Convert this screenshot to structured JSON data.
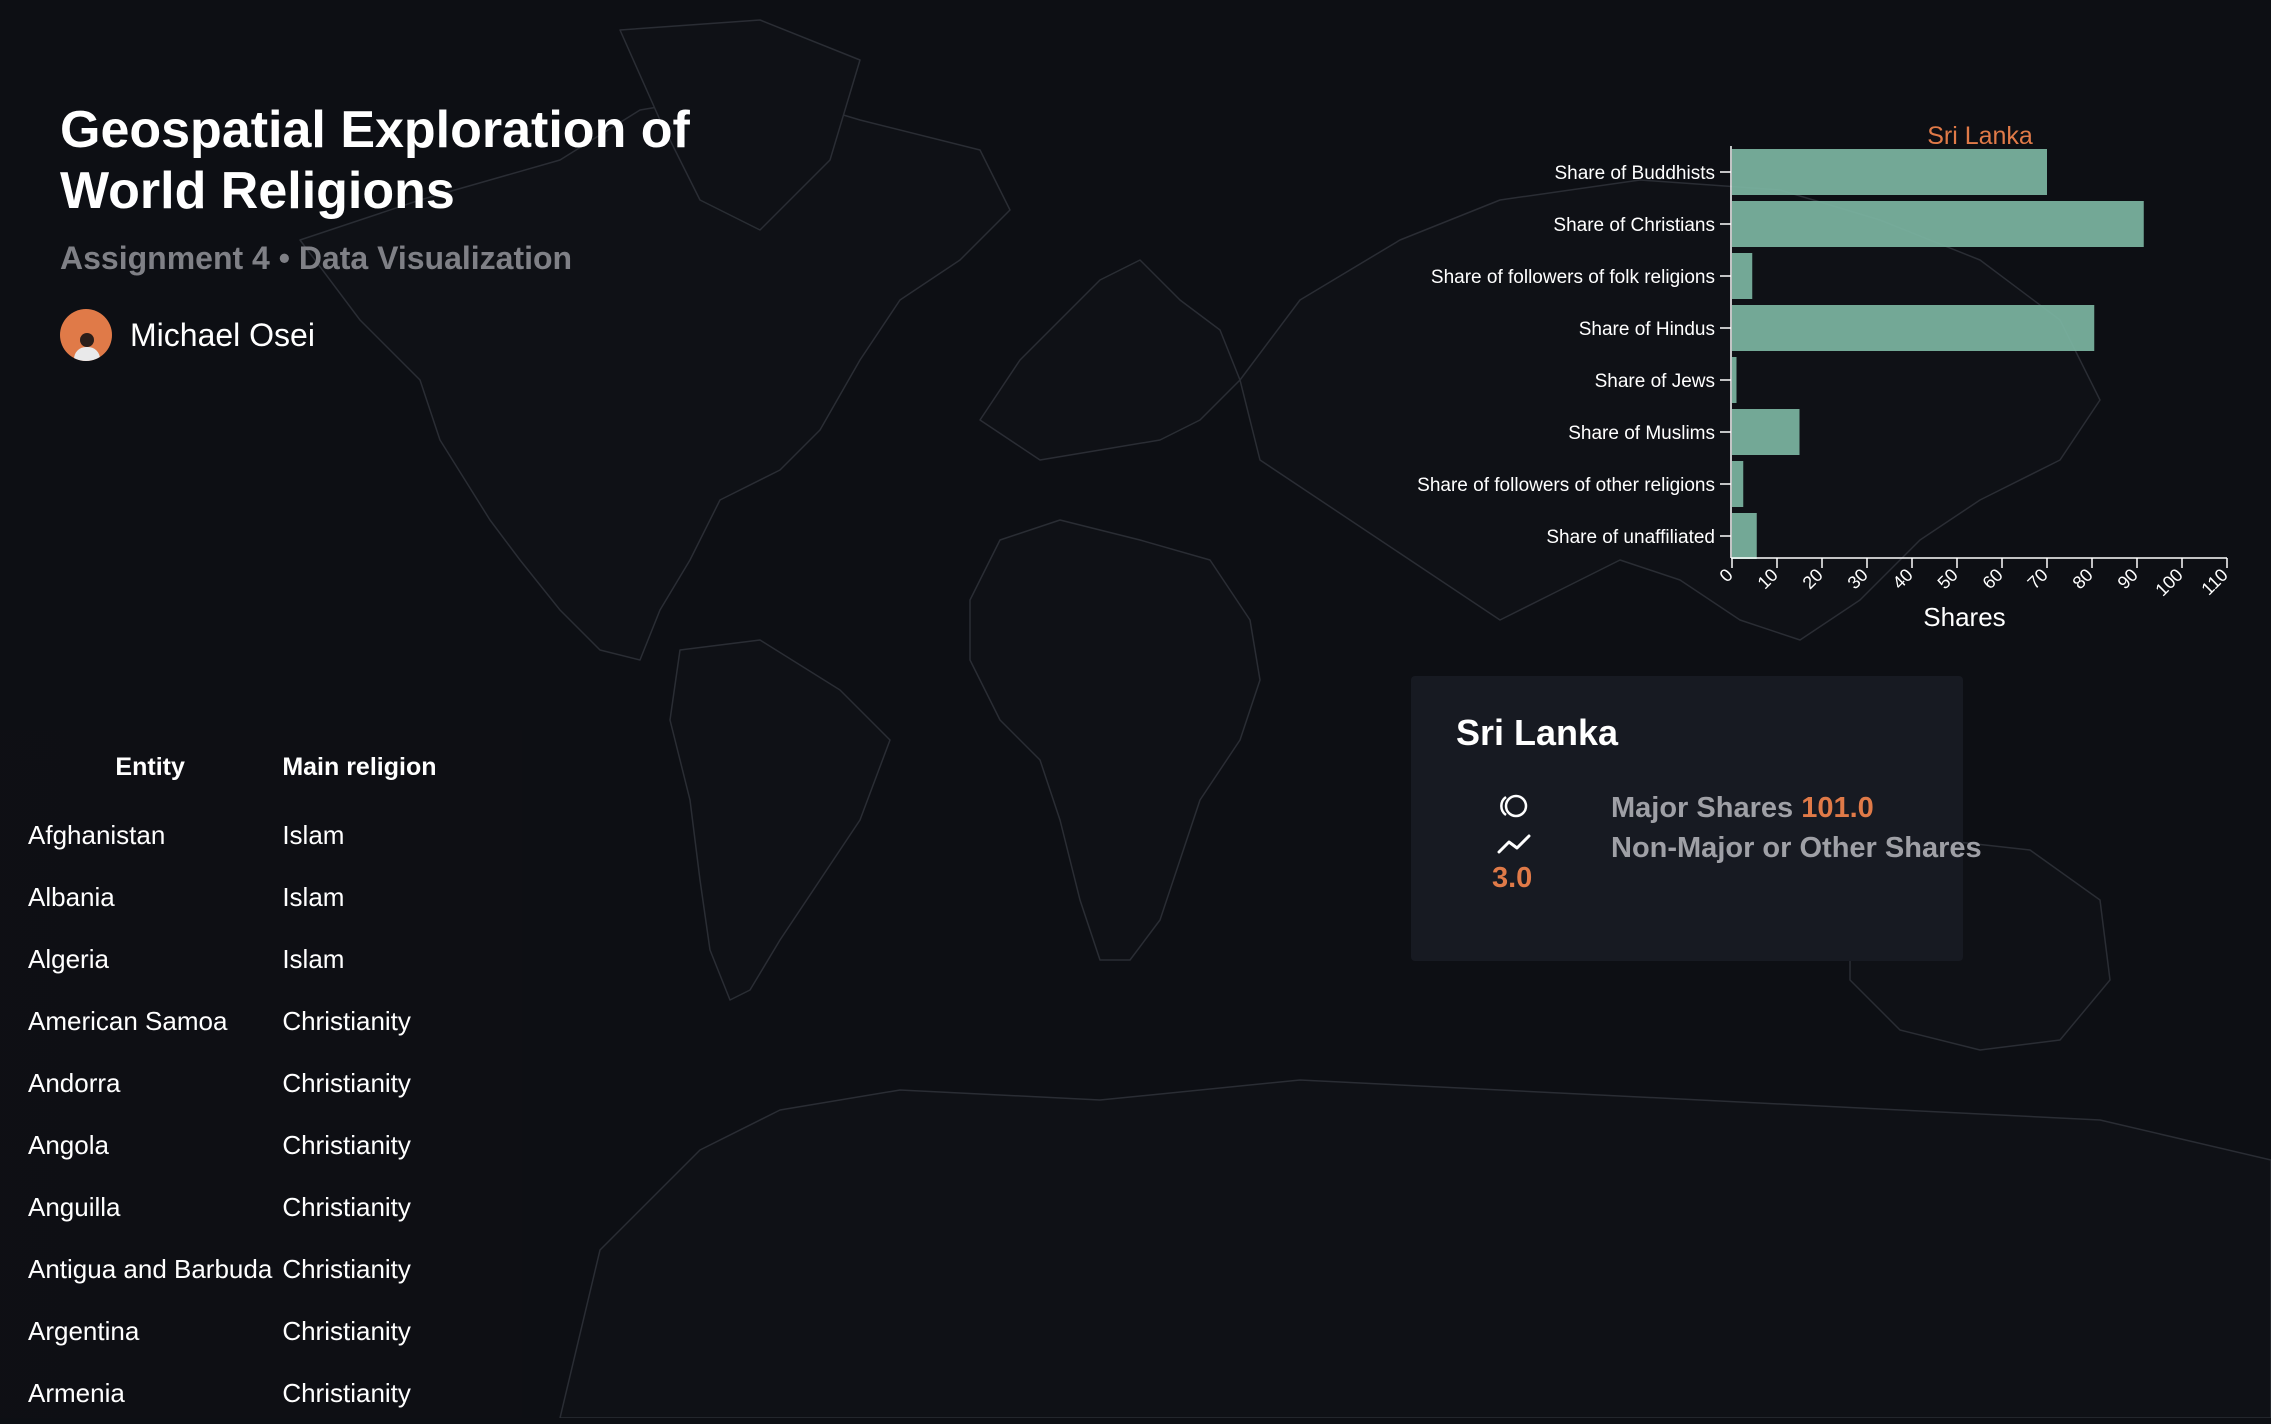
{
  "header": {
    "title_line1": "Geospatial Exploration of",
    "title_line2": "World Religions",
    "subtitle": "Assignment 4 • Data Visualization",
    "author": "Michael Osei"
  },
  "table": {
    "columns": [
      "Entity",
      "Main religion"
    ],
    "rows": [
      [
        "Afghanistan",
        "Islam"
      ],
      [
        "Albania",
        "Islam"
      ],
      [
        "Algeria",
        "Islam"
      ],
      [
        "American Samoa",
        "Christianity"
      ],
      [
        "Andorra",
        "Christianity"
      ],
      [
        "Angola",
        "Christianity"
      ],
      [
        "Anguilla",
        "Christianity"
      ],
      [
        "Antigua and Barbuda",
        "Christianity"
      ],
      [
        "Argentina",
        "Christianity"
      ],
      [
        "Armenia",
        "Christianity"
      ]
    ]
  },
  "chart_data": {
    "type": "bar",
    "orientation": "horizontal",
    "title": "Sri Lanka",
    "xlabel": "Shares",
    "ylabel": "",
    "xlim": [
      0,
      110
    ],
    "x_ticks": [
      0,
      10,
      20,
      30,
      40,
      50,
      60,
      70,
      80,
      90,
      100,
      110
    ],
    "categories": [
      "Share of Buddhists",
      "Share of Christians",
      "Share of followers of folk religions",
      "Share of Hindus",
      "Share of Jews",
      "Share of Muslims",
      "Share of followers of other religions",
      "Share of unaffiliated"
    ],
    "values": [
      70,
      91.5,
      4.5,
      80.5,
      1,
      15,
      2.5,
      5.5
    ],
    "bar_color": "#7cb5a2",
    "title_color": "#e07a48",
    "grid": false
  },
  "tooltip": {
    "country": "Sri Lanka",
    "major_label": "Major Shares",
    "major_value": "101.0",
    "other_label": "Non-Major or Other Shares",
    "other_value": "3.0",
    "major_icon": "rings-icon",
    "other_icon": "trend-line-icon"
  },
  "colors": {
    "background": "#0d0f14",
    "map_stroke": "#2a2d34",
    "accent": "#e07a48",
    "bar": "#7cb5a2",
    "tooltip_bg": "#171a22"
  }
}
